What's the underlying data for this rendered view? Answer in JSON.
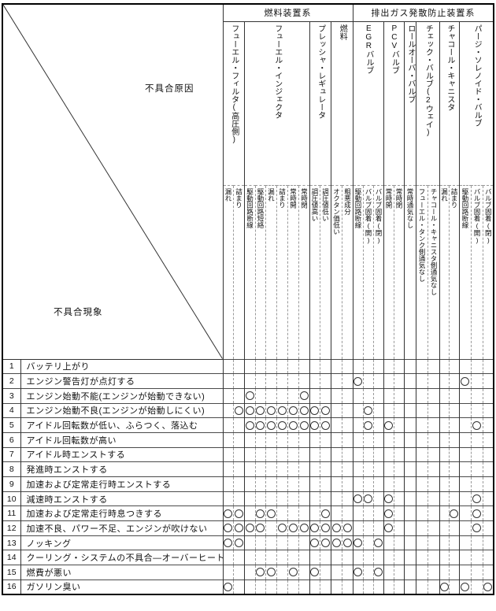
{
  "corner": {
    "cause_label": "不具合原因",
    "phenomenon_label": "不具合現象"
  },
  "mark_symbol": "○",
  "colors": {
    "line_solid": "#333333",
    "line_dashed": "#9a9a9a",
    "text": "#111111",
    "background": "#ffffff"
  },
  "header_groups": [
    {
      "label": "燃料装置系",
      "devices": [
        {
          "name": "フューエル・フィルタ(高圧側)",
          "causes": [
            "漏れ",
            "詰まり"
          ]
        },
        {
          "name": "フューエル・インジェクタ",
          "causes": [
            "駆動回路断線",
            "駆動回路短絡",
            "漏れ",
            "詰まり",
            "常時開",
            "常時閉"
          ]
        },
        {
          "name": "プレッシャ・レギュレータ",
          "causes": [
            "調圧値高い",
            "調圧値低い"
          ]
        },
        {
          "name": "燃料",
          "causes": [
            "オクタン価低い",
            "粗悪成分"
          ]
        }
      ]
    },
    {
      "label": "排出ガス発散防止装置系",
      "devices": [
        {
          "name": "EGRバルブ",
          "causes": [
            "駆動回路断線",
            "バルブ固着(開)",
            "バルブ固着(閉)"
          ]
        },
        {
          "name": "PCVバルブ",
          "causes": [
            "常時開",
            "常時閉"
          ]
        },
        {
          "name": "ロールオーバ・バルブ",
          "causes": [
            "常時通気なし"
          ]
        },
        {
          "name": "チェック・バルブ(2ウェイ)",
          "causes": [
            "フューエル・タンク側通気なし",
            "チャコール・キャニスタ側通気なし"
          ]
        },
        {
          "name": "チャコール・キャニスタ",
          "causes": [
            "漏れ",
            "詰まり"
          ]
        },
        {
          "name": "パージ・ソレノイド・バルブ",
          "causes": [
            "駆動回路断線",
            "バルブ固着(開)",
            "バルブ固着(閉)"
          ]
        }
      ]
    }
  ],
  "rows": [
    {
      "no": 1,
      "label": "バッテリ上がり",
      "marks": []
    },
    {
      "no": 2,
      "label": "エンジン警告灯が点灯する",
      "marks": [
        13,
        23
      ]
    },
    {
      "no": 3,
      "label": "エンジン始動不能(エンジンが始動できない)",
      "marks": [
        3,
        8
      ]
    },
    {
      "no": 4,
      "label": "エンジン始動不良(エンジンが始動しにくい)",
      "marks": [
        2,
        3,
        4,
        5,
        6,
        7,
        8,
        9,
        10,
        14
      ]
    },
    {
      "no": 5,
      "label": "アイドル回転数が低い、ふらつく、落込む",
      "marks": [
        3,
        4,
        5,
        6,
        7,
        8,
        9,
        10,
        14,
        16,
        24
      ]
    },
    {
      "no": 6,
      "label": "アイドル回転数が高い",
      "marks": []
    },
    {
      "no": 7,
      "label": "アイドル時エンストする",
      "marks": []
    },
    {
      "no": 8,
      "label": "発進時エンストする",
      "marks": []
    },
    {
      "no": 9,
      "label": "加速および定常走行時エンストする",
      "marks": []
    },
    {
      "no": 10,
      "label": "減速時エンストする",
      "marks": [
        13,
        14,
        16,
        24
      ]
    },
    {
      "no": 11,
      "label": "加速および定常走行時息つきする",
      "marks": [
        1,
        2,
        4,
        5,
        10,
        16,
        22,
        24
      ]
    },
    {
      "no": 12,
      "label": "加速不良、パワー不足、エンジンが吹けない",
      "marks": [
        1,
        2,
        3,
        4,
        6,
        7,
        8,
        9,
        10,
        11,
        12,
        16,
        24
      ]
    },
    {
      "no": 13,
      "label": "ノッキング",
      "marks": [
        1,
        2,
        9,
        10,
        11,
        12,
        13,
        15
      ]
    },
    {
      "no": 14,
      "label": "クーリング・システムの不具合—オーバーヒート",
      "marks": []
    },
    {
      "no": 15,
      "label": "燃費が悪い",
      "marks": [
        4,
        5,
        7,
        9,
        13,
        15
      ]
    },
    {
      "no": 16,
      "label": "ガソリン臭い",
      "marks": [
        1,
        21,
        23,
        25
      ]
    }
  ]
}
